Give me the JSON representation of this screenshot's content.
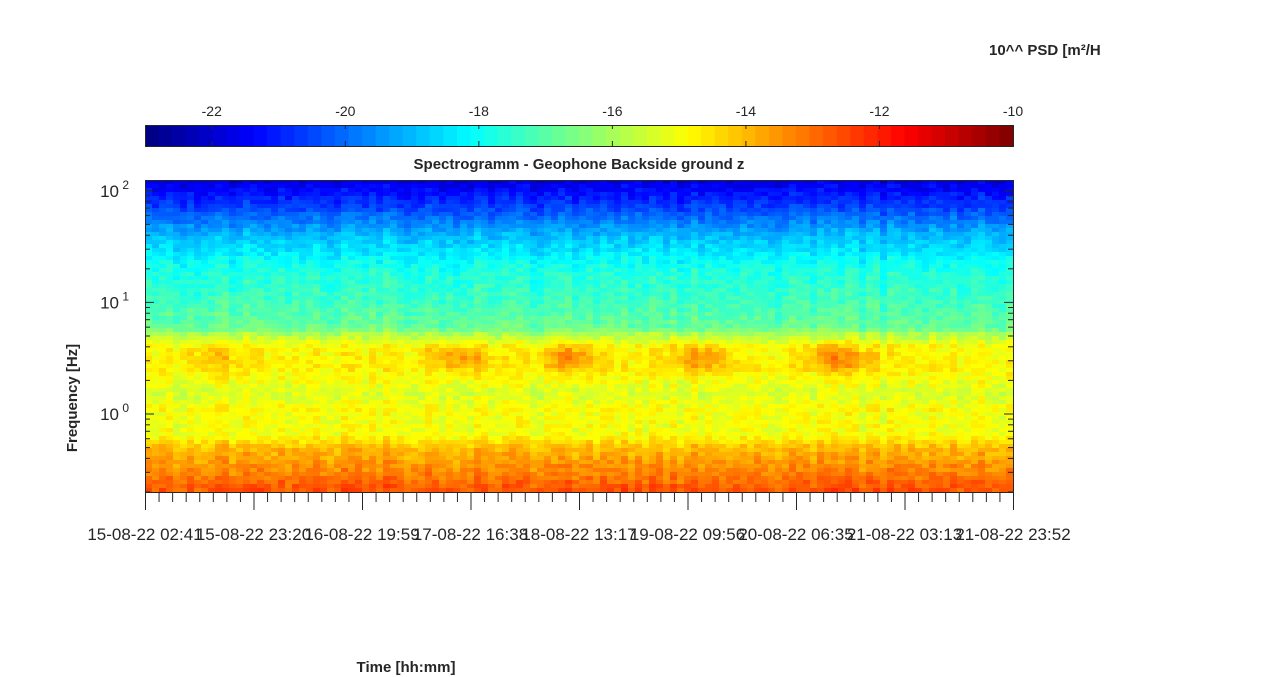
{
  "chart_data": {
    "type": "heatmap",
    "title": "Spectrogramm - Geophone Backside ground z",
    "xlabel": "Time [hh:mm]",
    "ylabel": "Frequency [Hz]",
    "y_scale": "log",
    "ylim": [
      0.2,
      125
    ],
    "y_ticks": [
      {
        "value": 1,
        "base": "10",
        "exp": "0"
      },
      {
        "value": 10,
        "base": "10",
        "exp": "1"
      },
      {
        "value": 100,
        "base": "10",
        "exp": "2"
      }
    ],
    "x_tick_labels": [
      "15-08-22 02:41",
      "15-08-22 23:20",
      "16-08-22 19:59",
      "17-08-22 16:38",
      "18-08-22 13:17",
      "19-08-22 09:56",
      "20-08-22 06:35",
      "21-08-22 03:13",
      "21-08-22 23:52"
    ],
    "colormap": "jet",
    "colorbar": {
      "label": "10^^ PSD [m²/H",
      "range": [
        -23,
        -10
      ],
      "ticks": [
        -22,
        -20,
        -18,
        -16,
        -14,
        -12,
        -10
      ],
      "tick_labels": [
        "-22",
        "-20",
        "-18",
        "-16",
        "-14",
        "-12",
        "-10"
      ],
      "location": "top"
    },
    "psd_profile_by_frequency": [
      {
        "freq": 0.2,
        "log10_psd": -12.6
      },
      {
        "freq": 0.3,
        "log10_psd": -13.3
      },
      {
        "freq": 0.5,
        "log10_psd": -14.0
      },
      {
        "freq": 0.65,
        "log10_psd": -15.0
      },
      {
        "freq": 1.0,
        "log10_psd": -15.0
      },
      {
        "freq": 1.5,
        "log10_psd": -15.6
      },
      {
        "freq": 2.5,
        "log10_psd": -15.0
      },
      {
        "freq": 4.0,
        "log10_psd": -15.1
      },
      {
        "freq": 6.0,
        "log10_psd": -16.8
      },
      {
        "freq": 10,
        "log10_psd": -17.3
      },
      {
        "freq": 20,
        "log10_psd": -17.8
      },
      {
        "freq": 40,
        "log10_psd": -19.0
      },
      {
        "freq": 70,
        "log10_psd": -20.5
      },
      {
        "freq": 125,
        "log10_psd": -21.8
      }
    ],
    "activity_bursts_3hz": [
      {
        "time_fraction": 0.08,
        "intensity": 0.5
      },
      {
        "time_fraction": 0.36,
        "intensity": 0.9
      },
      {
        "time_fraction": 0.49,
        "intensity": 1.0
      },
      {
        "time_fraction": 0.64,
        "intensity": 0.9
      },
      {
        "time_fraction": 0.8,
        "intensity": 1.0
      }
    ],
    "grid": false
  }
}
